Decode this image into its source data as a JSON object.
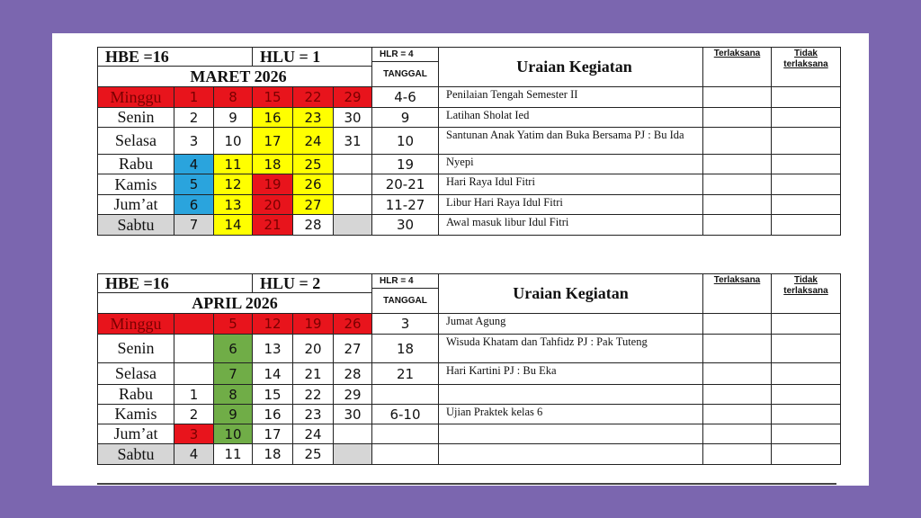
{
  "calendars": [
    {
      "hbe": "HBE =16",
      "hlu": "HLU = 1",
      "hlr": "HLR = 4",
      "month": "MARET  2026",
      "tanggal_header": "TANGGAL",
      "uraian_header": "Uraian Kegiatan",
      "terlaksana_header": "Terlaksana",
      "tidak_header": "Tidak terlaksana",
      "rows": [
        {
          "day": "Minggu",
          "dates": [
            1,
            8,
            15,
            22,
            29
          ],
          "tanggal": "4-6",
          "kegiatan": "Penilaian Tengah Semester II"
        },
        {
          "day": "Senin",
          "dates": [
            2,
            9,
            16,
            23,
            30
          ],
          "tanggal": "9",
          "kegiatan": "Latihan Sholat Ied"
        },
        {
          "day": "Selasa",
          "dates": [
            3,
            10,
            17,
            24,
            31
          ],
          "tanggal": "10",
          "kegiatan": "Santunan Anak Yatim dan Buka Bersama PJ : Bu Ida"
        },
        {
          "day": "Rabu",
          "dates": [
            4,
            11,
            18,
            25,
            null
          ],
          "tanggal": "19",
          "kegiatan": "Nyepi"
        },
        {
          "day": "Kamis",
          "dates": [
            5,
            12,
            19,
            26,
            null
          ],
          "tanggal": "20-21",
          "kegiatan": "Hari Raya Idul Fitri"
        },
        {
          "day": "Jum’at",
          "dates": [
            6,
            13,
            20,
            27,
            null
          ],
          "tanggal": "11-27",
          "kegiatan": "Libur Hari Raya Idul Fitri"
        },
        {
          "day": "Sabtu",
          "dates": [
            7,
            14,
            21,
            28,
            null
          ],
          "tanggal": "30",
          "kegiatan": "Awal masuk libur Idul Fitri"
        }
      ]
    },
    {
      "hbe": "HBE =16",
      "hlu": "HLU = 2",
      "hlr": "HLR = 4",
      "month": "APRIL 2026",
      "tanggal_header": "TANGGAL",
      "uraian_header": "Uraian Kegiatan",
      "terlaksana_header": "Terlaksana",
      "tidak_header": "Tidak terlaksana",
      "rows": [
        {
          "day": "Minggu",
          "dates": [
            null,
            5,
            12,
            19,
            26
          ],
          "tanggal": "3",
          "kegiatan": "Jumat Agung"
        },
        {
          "day": "Senin",
          "dates": [
            null,
            6,
            13,
            20,
            27
          ],
          "tanggal": "18",
          "kegiatan": "Wisuda Khatam dan Tahfidz PJ : Pak Tuteng"
        },
        {
          "day": "Selasa",
          "dates": [
            null,
            7,
            14,
            21,
            28
          ],
          "tanggal": "21",
          "kegiatan": "Hari Kartini PJ : Bu Eka"
        },
        {
          "day": "Rabu",
          "dates": [
            1,
            8,
            15,
            22,
            29
          ],
          "tanggal": null,
          "kegiatan": null
        },
        {
          "day": "Kamis",
          "dates": [
            2,
            9,
            16,
            23,
            30
          ],
          "tanggal": "6-10",
          "kegiatan": "Ujian Praktek kelas 6"
        },
        {
          "day": "Jum’at",
          "dates": [
            3,
            10,
            17,
            24,
            null
          ],
          "tanggal": null,
          "kegiatan": null
        },
        {
          "day": "Sabtu",
          "dates": [
            4,
            11,
            18,
            25,
            null
          ],
          "tanggal": null,
          "kegiatan": null
        }
      ]
    }
  ]
}
